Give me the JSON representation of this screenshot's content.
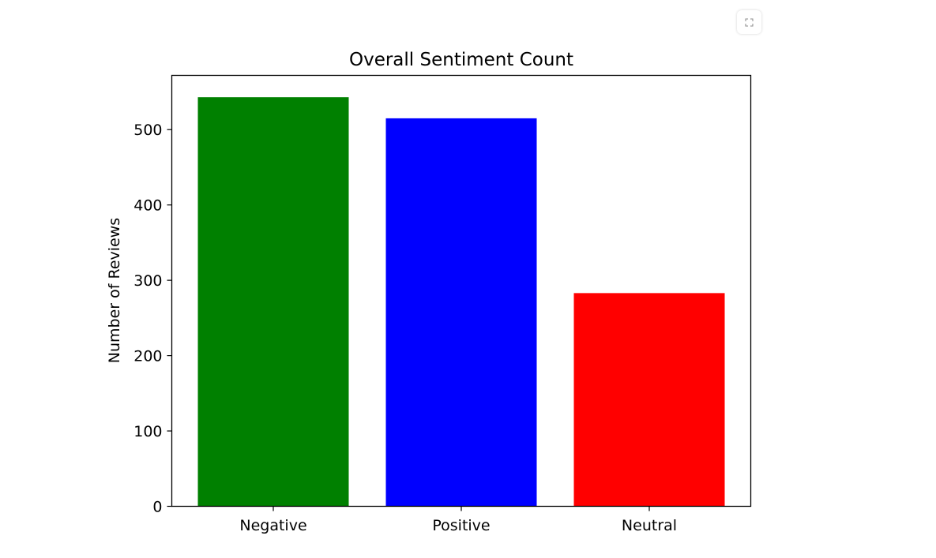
{
  "toolbar": {
    "expand_icon": "expand-corners-icon"
  },
  "chart_data": {
    "type": "bar",
    "title": "Overall Sentiment Count",
    "xlabel": "",
    "ylabel": "Number of Reviews",
    "categories": [
      "Negative",
      "Positive",
      "Neutral"
    ],
    "values": [
      543,
      515,
      283
    ],
    "colors": [
      "#008000",
      "#0000ff",
      "#ff0000"
    ],
    "ylim": [
      0,
      572
    ],
    "yticks": [
      0,
      100,
      200,
      300,
      400,
      500
    ],
    "grid": false,
    "legend": "none"
  }
}
